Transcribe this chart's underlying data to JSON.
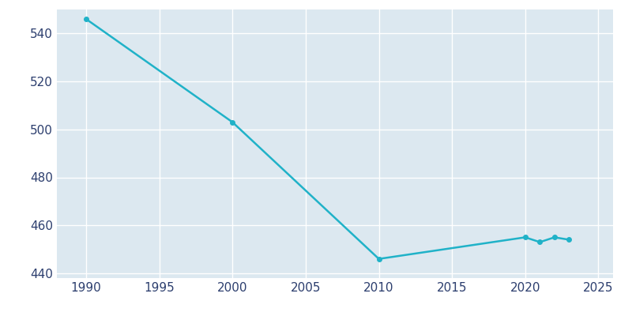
{
  "years": [
    1990,
    2000,
    2010,
    2020,
    2021,
    2022,
    2023
  ],
  "population": [
    546,
    503,
    446,
    455,
    453,
    455,
    454
  ],
  "line_color": "#20b2c8",
  "marker_color": "#20b2c8",
  "bg_color": "#ffffff",
  "axes_bg_color": "#dce8f0",
  "xlim": [
    1988,
    2026
  ],
  "ylim": [
    438,
    550
  ],
  "yticks": [
    440,
    460,
    480,
    500,
    520,
    540
  ],
  "xticks": [
    1990,
    1995,
    2000,
    2005,
    2010,
    2015,
    2020,
    2025
  ],
  "grid_color": "#ffffff",
  "tick_label_color": "#2c3e6e",
  "tick_fontsize": 11
}
